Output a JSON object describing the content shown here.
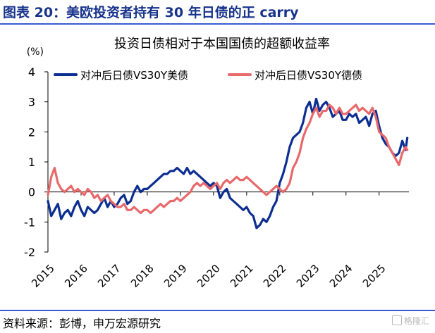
{
  "header": {
    "title": "图表 20：美欧投资者持有 30 年日债的正 carry"
  },
  "footer": {
    "source": "资料来源：彭博，申万宏源研究",
    "watermark": "格隆汇"
  },
  "colors": {
    "accent": "#17338c",
    "series_1": "#0d2e91",
    "series_2": "#e8696b"
  },
  "chart_data": {
    "type": "line",
    "title": "投资日债相对于本国国债的超额收益率",
    "unit_label": "(%)",
    "ylim": [
      -2,
      4
    ],
    "yticks": [
      -2,
      -1,
      0,
      1,
      2,
      3,
      4
    ],
    "xlim": [
      2015,
      2025.9
    ],
    "xticks": [
      "2015",
      "2016",
      "2017",
      "2018",
      "2019",
      "2020",
      "2021",
      "2022",
      "2023",
      "2024",
      "2025"
    ],
    "grid": false,
    "legend_position": "top",
    "series": [
      {
        "name": "对冲后日债VS30Y美债",
        "x": [
          2015.0,
          2015.1,
          2015.2,
          2015.3,
          2015.4,
          2015.5,
          2015.6,
          2015.7,
          2015.8,
          2015.9,
          2016.0,
          2016.1,
          2016.2,
          2016.3,
          2016.4,
          2016.5,
          2016.6,
          2016.7,
          2016.8,
          2016.9,
          2017.0,
          2017.1,
          2017.2,
          2017.3,
          2017.4,
          2017.5,
          2017.6,
          2017.7,
          2017.8,
          2017.9,
          2018.0,
          2018.1,
          2018.2,
          2018.3,
          2018.4,
          2018.5,
          2018.6,
          2018.7,
          2018.8,
          2018.9,
          2019.0,
          2019.1,
          2019.2,
          2019.3,
          2019.4,
          2019.5,
          2019.6,
          2019.7,
          2019.8,
          2019.9,
          2020.0,
          2020.1,
          2020.2,
          2020.3,
          2020.4,
          2020.5,
          2020.6,
          2020.7,
          2020.8,
          2020.9,
          2021.0,
          2021.1,
          2021.2,
          2021.3,
          2021.4,
          2021.5,
          2021.6,
          2021.7,
          2021.8,
          2021.9,
          2022.0,
          2022.1,
          2022.2,
          2022.3,
          2022.4,
          2022.5,
          2022.6,
          2022.7,
          2022.8,
          2022.9,
          2023.0,
          2023.1,
          2023.2,
          2023.3,
          2023.4,
          2023.5,
          2023.6,
          2023.7,
          2023.8,
          2023.9,
          2024.0,
          2024.1,
          2024.2,
          2024.3,
          2024.4,
          2024.5,
          2024.6,
          2024.7,
          2024.8,
          2024.9,
          2025.0,
          2025.1,
          2025.2,
          2025.3,
          2025.4,
          2025.5,
          2025.6,
          2025.7,
          2025.8,
          2025.85
        ],
        "values": [
          -0.3,
          -0.8,
          -0.6,
          -0.4,
          -0.9,
          -0.7,
          -0.6,
          -0.8,
          -0.5,
          -0.3,
          -0.6,
          -0.8,
          -0.5,
          -0.6,
          -0.7,
          -0.6,
          -0.4,
          -0.2,
          -0.5,
          -0.3,
          -0.5,
          -0.4,
          -0.2,
          -0.1,
          -0.4,
          -0.3,
          0.0,
          0.2,
          0.0,
          0.1,
          0.1,
          0.2,
          0.3,
          0.4,
          0.5,
          0.6,
          0.6,
          0.7,
          0.7,
          0.8,
          0.7,
          0.6,
          0.8,
          0.6,
          0.7,
          0.6,
          0.5,
          0.4,
          0.3,
          0.2,
          0.3,
          0.2,
          -0.2,
          0.0,
          0.1,
          -0.2,
          -0.3,
          -0.4,
          -0.5,
          -0.6,
          -0.5,
          -0.7,
          -0.8,
          -1.2,
          -1.1,
          -0.9,
          -1.0,
          -0.8,
          -0.5,
          -0.3,
          0.3,
          0.6,
          1.0,
          1.5,
          1.8,
          1.9,
          2.0,
          2.3,
          2.8,
          3.0,
          2.6,
          3.1,
          2.7,
          2.9,
          3.0,
          2.8,
          2.5,
          2.6,
          2.7,
          2.4,
          2.4,
          2.6,
          2.5,
          2.6,
          2.3,
          2.4,
          2.5,
          2.2,
          2.6,
          2.7,
          2.2,
          1.8,
          1.6,
          1.5,
          1.3,
          1.2,
          1.3,
          1.7,
          1.4,
          1.8
        ]
      },
      {
        "name": "对冲后日债VS30Y德债",
        "x": [
          2015.0,
          2015.1,
          2015.2,
          2015.3,
          2015.4,
          2015.5,
          2015.6,
          2015.7,
          2015.8,
          2015.9,
          2016.0,
          2016.1,
          2016.2,
          2016.3,
          2016.4,
          2016.5,
          2016.6,
          2016.7,
          2016.8,
          2016.9,
          2017.0,
          2017.1,
          2017.2,
          2017.3,
          2017.4,
          2017.5,
          2017.6,
          2017.7,
          2017.8,
          2017.9,
          2018.0,
          2018.1,
          2018.2,
          2018.3,
          2018.4,
          2018.5,
          2018.6,
          2018.7,
          2018.8,
          2018.9,
          2019.0,
          2019.1,
          2019.2,
          2019.3,
          2019.4,
          2019.5,
          2019.6,
          2019.7,
          2019.8,
          2019.9,
          2020.0,
          2020.1,
          2020.2,
          2020.3,
          2020.4,
          2020.5,
          2020.6,
          2020.7,
          2020.8,
          2020.9,
          2021.0,
          2021.1,
          2021.2,
          2021.3,
          2021.4,
          2021.5,
          2021.6,
          2021.7,
          2021.8,
          2021.9,
          2022.0,
          2022.1,
          2022.2,
          2022.3,
          2022.4,
          2022.5,
          2022.6,
          2022.7,
          2022.8,
          2022.9,
          2023.0,
          2023.1,
          2023.2,
          2023.3,
          2023.4,
          2023.5,
          2023.6,
          2023.7,
          2023.8,
          2023.9,
          2024.0,
          2024.1,
          2024.2,
          2024.3,
          2024.4,
          2024.5,
          2024.6,
          2024.7,
          2024.8,
          2024.9,
          2025.0,
          2025.1,
          2025.2,
          2025.3,
          2025.4,
          2025.5,
          2025.6,
          2025.7,
          2025.8,
          2025.85
        ],
        "values": [
          -0.1,
          0.5,
          0.8,
          0.3,
          0.1,
          0.0,
          0.1,
          0.2,
          0.0,
          0.1,
          0.0,
          -0.1,
          0.1,
          0.0,
          -0.2,
          -0.1,
          -0.3,
          -0.2,
          -0.1,
          -0.3,
          -0.4,
          -0.5,
          -0.5,
          -0.4,
          -0.6,
          -0.6,
          -0.5,
          -0.6,
          -0.7,
          -0.6,
          -0.6,
          -0.7,
          -0.6,
          -0.5,
          -0.4,
          -0.5,
          -0.4,
          -0.3,
          -0.3,
          -0.2,
          -0.3,
          -0.2,
          -0.1,
          0.0,
          0.2,
          0.3,
          0.2,
          0.3,
          0.2,
          0.1,
          0.2,
          0.3,
          0.1,
          0.3,
          0.4,
          0.3,
          0.4,
          0.5,
          0.4,
          0.4,
          0.5,
          0.4,
          0.3,
          0.2,
          0.1,
          0.0,
          -0.1,
          0.0,
          0.1,
          0.2,
          0.1,
          0.0,
          0.1,
          0.3,
          0.8,
          1.0,
          1.3,
          1.8,
          2.1,
          2.3,
          2.6,
          2.8,
          2.5,
          2.7,
          2.7,
          2.9,
          2.8,
          2.6,
          2.8,
          2.6,
          2.6,
          2.7,
          2.8,
          2.9,
          2.7,
          2.8,
          2.7,
          2.6,
          2.8,
          2.5,
          2.0,
          1.9,
          1.8,
          1.5,
          1.3,
          1.1,
          0.9,
          1.3,
          1.5,
          1.4
        ]
      }
    ]
  }
}
